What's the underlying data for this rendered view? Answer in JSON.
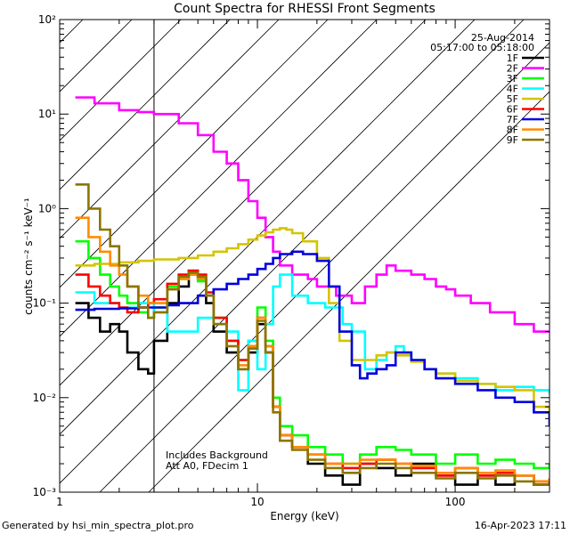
{
  "chart_data": {
    "type": "line",
    "title": "Count Spectra for RHESSI Front Segments",
    "xlabel": "Energy (keV)",
    "ylabel": "counts cm⁻² s⁻¹ keV⁻¹",
    "xscale": "log",
    "yscale": "log",
    "xlim": [
      1,
      300
    ],
    "ylim": [
      0.001,
      100
    ],
    "x_ticks": [
      1,
      10,
      100
    ],
    "x_tick_labels": [
      "1",
      "10",
      "100"
    ],
    "y_ticks": [
      0.001,
      0.01,
      0.1,
      1,
      10,
      100
    ],
    "y_tick_labels": [
      "10⁻³",
      "10⁻²",
      "10⁻¹",
      "10⁰",
      "10¹",
      "10²"
    ],
    "date": "25-Aug-2014",
    "time_range": "05:17:00 to 05:18:00",
    "annotation_lines": [
      "Includes Background",
      "Att A0, FDecim 1"
    ],
    "hatched_region_energy_max": 3,
    "footer_left": "Generated by hsi_min_spectra_plot.pro",
    "footer_right": "16-Apr-2023 17:11",
    "series": [
      {
        "name": "1F",
        "color": "#000000",
        "x": [
          1.2,
          1.4,
          1.6,
          1.8,
          2.0,
          2.2,
          2.5,
          2.8,
          3.0,
          3.5,
          4.0,
          4.5,
          5.0,
          5.5,
          6,
          7,
          8,
          9,
          10,
          11,
          12,
          13,
          15,
          18,
          22,
          27,
          33,
          40,
          50,
          60,
          80,
          100,
          130,
          160,
          200,
          250,
          300
        ],
        "y": [
          0.1,
          0.07,
          0.05,
          0.06,
          0.05,
          0.03,
          0.02,
          0.018,
          0.04,
          0.1,
          0.15,
          0.22,
          0.18,
          0.1,
          0.05,
          0.03,
          0.02,
          0.03,
          0.06,
          0.03,
          0.008,
          0.004,
          0.003,
          0.002,
          0.0015,
          0.0012,
          0.002,
          0.0018,
          0.0015,
          0.002,
          0.0015,
          0.0012,
          0.0015,
          0.0012,
          0.0015,
          0.0012,
          0.0014
        ]
      },
      {
        "name": "2F",
        "color": "#ff00ff",
        "x": [
          1.2,
          1.5,
          2.0,
          2.5,
          3.0,
          4,
          5,
          6,
          7,
          8,
          9,
          10,
          11,
          12,
          13,
          15,
          18,
          20,
          25,
          30,
          35,
          40,
          45,
          50,
          60,
          70,
          80,
          90,
          100,
          120,
          150,
          200,
          250,
          300
        ],
        "y": [
          15,
          13,
          11,
          10.5,
          10,
          8,
          6,
          4,
          3,
          2,
          1.2,
          0.8,
          0.5,
          0.35,
          0.25,
          0.2,
          0.18,
          0.15,
          0.12,
          0.1,
          0.15,
          0.2,
          0.25,
          0.22,
          0.2,
          0.18,
          0.15,
          0.14,
          0.12,
          0.1,
          0.08,
          0.06,
          0.05,
          0.05
        ]
      },
      {
        "name": "3F",
        "color": "#00ff00",
        "x": [
          1.2,
          1.4,
          1.6,
          1.8,
          2.0,
          2.2,
          2.5,
          2.8,
          3.0,
          3.5,
          4.0,
          4.5,
          5.0,
          5.5,
          6,
          7,
          8,
          9,
          10,
          11,
          12,
          13,
          15,
          18,
          22,
          27,
          33,
          40,
          50,
          60,
          80,
          100,
          130,
          160,
          200,
          250,
          300
        ],
        "y": [
          0.45,
          0.3,
          0.2,
          0.15,
          0.12,
          0.1,
          0.08,
          0.07,
          0.09,
          0.15,
          0.18,
          0.2,
          0.17,
          0.12,
          0.07,
          0.04,
          0.025,
          0.04,
          0.09,
          0.04,
          0.01,
          0.005,
          0.004,
          0.003,
          0.0025,
          0.002,
          0.0025,
          0.003,
          0.0028,
          0.0025,
          0.002,
          0.0025,
          0.002,
          0.0022,
          0.002,
          0.0018,
          0.002
        ]
      },
      {
        "name": "4F",
        "color": "#00ffff",
        "x": [
          1.2,
          1.5,
          2.0,
          2.5,
          3.0,
          3.5,
          4.0,
          5,
          6,
          7,
          8,
          9,
          10,
          11,
          12,
          13,
          15,
          18,
          22,
          27,
          30,
          35,
          40,
          45,
          50,
          55,
          60,
          70,
          80,
          100,
          130,
          160,
          200,
          250,
          300
        ],
        "y": [
          0.13,
          0.1,
          0.09,
          0.1,
          0.08,
          0.05,
          0.05,
          0.07,
          0.06,
          0.05,
          0.012,
          0.04,
          0.02,
          0.06,
          0.15,
          0.2,
          0.12,
          0.1,
          0.09,
          0.06,
          0.05,
          0.02,
          0.025,
          0.03,
          0.035,
          0.03,
          0.025,
          0.02,
          0.018,
          0.016,
          0.014,
          0.012,
          0.013,
          0.012,
          0.011
        ]
      },
      {
        "name": "5F",
        "color": "#d4c400",
        "x": [
          1.2,
          1.5,
          2.0,
          2.5,
          3.0,
          4,
          5,
          6,
          7,
          8,
          9,
          10,
          11,
          12,
          13,
          14,
          15,
          17,
          20,
          23,
          26,
          30,
          35,
          40,
          45,
          50,
          60,
          70,
          80,
          100,
          130,
          160,
          200,
          250,
          300
        ],
        "y": [
          0.25,
          0.26,
          0.27,
          0.28,
          0.29,
          0.3,
          0.32,
          0.35,
          0.38,
          0.42,
          0.47,
          0.52,
          0.56,
          0.6,
          0.62,
          0.6,
          0.55,
          0.45,
          0.3,
          0.1,
          0.04,
          0.025,
          0.025,
          0.028,
          0.03,
          0.028,
          0.024,
          0.02,
          0.018,
          0.015,
          0.014,
          0.013,
          0.012,
          0.008,
          0.006
        ]
      },
      {
        "name": "6F",
        "color": "#ff0000",
        "x": [
          1.2,
          1.4,
          1.6,
          1.8,
          2.0,
          2.2,
          2.5,
          2.8,
          3.0,
          3.5,
          4.0,
          4.5,
          5.0,
          5.5,
          6,
          7,
          8,
          9,
          10,
          11,
          12,
          13,
          15,
          18,
          22,
          27,
          33,
          40,
          50,
          60,
          80,
          100,
          130,
          160,
          200,
          250,
          300
        ],
        "y": [
          0.2,
          0.15,
          0.12,
          0.1,
          0.09,
          0.08,
          0.09,
          0.1,
          0.11,
          0.16,
          0.2,
          0.22,
          0.2,
          0.13,
          0.07,
          0.04,
          0.025,
          0.035,
          0.07,
          0.035,
          0.008,
          0.004,
          0.003,
          0.0025,
          0.002,
          0.0018,
          0.002,
          0.0022,
          0.002,
          0.0018,
          0.0015,
          0.0018,
          0.0015,
          0.0016,
          0.0015,
          0.0013,
          0.0014
        ]
      },
      {
        "name": "7F",
        "color": "#0000dd",
        "x": [
          1.2,
          1.5,
          2.0,
          2.5,
          3.0,
          3.5,
          4,
          5,
          6,
          7,
          8,
          9,
          10,
          11,
          12,
          13,
          15,
          17,
          20,
          23,
          26,
          30,
          33,
          36,
          40,
          45,
          50,
          60,
          70,
          80,
          100,
          130,
          160,
          200,
          250,
          300
        ],
        "y": [
          0.085,
          0.087,
          0.088,
          0.09,
          0.09,
          0.095,
          0.1,
          0.12,
          0.14,
          0.16,
          0.18,
          0.2,
          0.23,
          0.26,
          0.3,
          0.33,
          0.35,
          0.33,
          0.28,
          0.15,
          0.05,
          0.022,
          0.016,
          0.018,
          0.02,
          0.022,
          0.03,
          0.025,
          0.02,
          0.016,
          0.014,
          0.012,
          0.01,
          0.009,
          0.007,
          0.005
        ]
      },
      {
        "name": "8F",
        "color": "#ff8c00",
        "x": [
          1.2,
          1.4,
          1.6,
          1.8,
          2.0,
          2.2,
          2.5,
          2.8,
          3.0,
          3.5,
          4.0,
          4.5,
          5.0,
          5.5,
          6,
          7,
          8,
          9,
          10,
          11,
          12,
          13,
          15,
          18,
          22,
          27,
          33,
          40,
          50,
          60,
          80,
          100,
          130,
          160,
          200,
          250,
          300
        ],
        "y": [
          0.8,
          0.5,
          0.35,
          0.25,
          0.2,
          0.15,
          0.12,
          0.1,
          0.1,
          0.14,
          0.18,
          0.2,
          0.18,
          0.12,
          0.06,
          0.035,
          0.022,
          0.035,
          0.07,
          0.035,
          0.008,
          0.004,
          0.003,
          0.0025,
          0.002,
          0.002,
          0.0022,
          0.0022,
          0.002,
          0.0019,
          0.0016,
          0.0018,
          0.0016,
          0.0017,
          0.0015,
          0.0013,
          0.0014
        ]
      },
      {
        "name": "9F",
        "color": "#8b7500",
        "x": [
          1.2,
          1.4,
          1.6,
          1.8,
          2.0,
          2.2,
          2.5,
          2.8,
          3.0,
          3.5,
          4.0,
          4.5,
          5.0,
          5.5,
          6,
          7,
          8,
          9,
          10,
          11,
          12,
          13,
          15,
          18,
          22,
          27,
          33,
          40,
          50,
          60,
          80,
          100,
          130,
          160,
          200,
          250,
          300
        ],
        "y": [
          1.8,
          1.0,
          0.6,
          0.4,
          0.25,
          0.15,
          0.09,
          0.07,
          0.08,
          0.14,
          0.19,
          0.21,
          0.19,
          0.12,
          0.06,
          0.035,
          0.02,
          0.033,
          0.065,
          0.03,
          0.007,
          0.0035,
          0.0028,
          0.0022,
          0.0018,
          0.0016,
          0.0018,
          0.002,
          0.0018,
          0.0016,
          0.0014,
          0.0016,
          0.0014,
          0.0015,
          0.0013,
          0.0012,
          0.0013
        ]
      }
    ]
  }
}
